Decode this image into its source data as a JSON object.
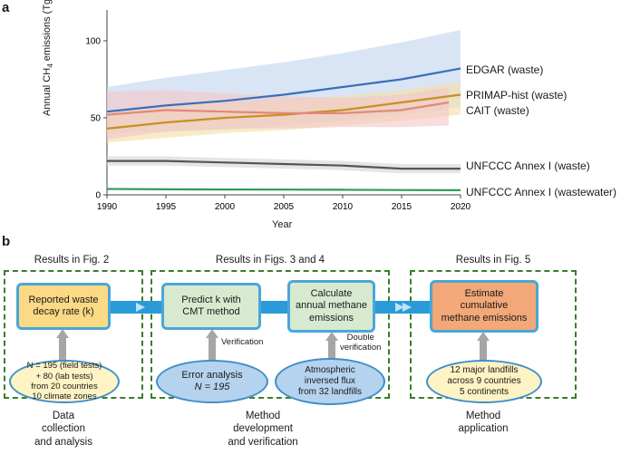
{
  "panel_a": {
    "letter": "a"
  },
  "panel_b": {
    "letter": "b",
    "headers": [
      "Results in Fig. 2",
      "Results in Figs. 3 and 4",
      "Results in Fig. 5"
    ],
    "boxes": {
      "decay": [
        "Reported waste",
        "decay rate (k)"
      ],
      "predict": [
        "Predict k with",
        "CMT method"
      ],
      "calculate": [
        "Calculate",
        "annual methane",
        "emissions"
      ],
      "estimate": [
        "Estimate",
        "cumulative",
        "methane emissions"
      ]
    },
    "ellipses": {
      "data": [
        "N = 195 (field tests)",
        "+ 80 (lab tests)",
        "from 20 countries",
        "10 climate zones"
      ],
      "error": [
        "Error analysis",
        "N = 195"
      ],
      "flux": [
        "Atmospheric",
        "inversed flux",
        "from 32 landfills"
      ],
      "landfills": [
        "12 major landfills",
        "across 9 countries",
        "5 continents"
      ]
    },
    "notes": {
      "verification": "Verification",
      "double": [
        "Double",
        "verification"
      ]
    },
    "captions": {
      "collection": [
        "Data",
        "collection",
        "and analysis"
      ],
      "development": [
        "Method",
        "development",
        "and verification"
      ],
      "application": [
        "Method",
        "application"
      ]
    },
    "colors": {
      "yellow_box": "#fbd985",
      "green_box": "#d7ead0",
      "orange_box": "#f2a878",
      "pipe": "#2a9bd8",
      "dash": "#3a7d2c"
    }
  },
  "chart_data": {
    "type": "line",
    "title": "",
    "xlabel": "Year",
    "ylabel_parts": [
      "Annual CH",
      "4",
      " emissions (Tg)"
    ],
    "x_ticks": [
      1990,
      1995,
      2000,
      2005,
      2010,
      2015,
      2020
    ],
    "y_ticks": [
      0,
      50,
      100
    ],
    "xlim": [
      1990,
      2020
    ],
    "ylim": [
      0,
      120
    ],
    "grid": false,
    "series": [
      {
        "name": "EDGAR (waste)",
        "color": "#3a6fb8",
        "band_color": "#bfd4ee",
        "x": [
          1990,
          1995,
          2000,
          2005,
          2010,
          2015,
          2020
        ],
        "values": [
          54,
          58,
          61,
          65,
          70,
          75,
          82
        ],
        "lower": [
          40,
          41,
          42,
          45,
          48,
          52,
          57
        ],
        "upper": [
          70,
          76,
          81,
          86,
          92,
          99,
          107
        ]
      },
      {
        "name": "PRIMAP-hist (waste)",
        "color": "#c98f22",
        "band_color": "#f3e0a3",
        "x": [
          1990,
          1995,
          2000,
          2005,
          2010,
          2015,
          2020
        ],
        "values": [
          43,
          47,
          50,
          52,
          55,
          60,
          65
        ],
        "lower": [
          34,
          37,
          40,
          42,
          45,
          48,
          52
        ],
        "upper": [
          53,
          57,
          60,
          62,
          64,
          68,
          73
        ]
      },
      {
        "name": "CAIT (waste)",
        "color": "#e08a78",
        "band_color": "#f4c6c6",
        "x": [
          1990,
          1995,
          2000,
          2005,
          2010,
          2015,
          2019
        ],
        "values": [
          52,
          55,
          54,
          53,
          53,
          55,
          60
        ],
        "lower": [
          36,
          41,
          43,
          43,
          44,
          44,
          45
        ],
        "upper": [
          67,
          68,
          66,
          64,
          63,
          65,
          70
        ]
      },
      {
        "name": "UNFCCC Annex I (waste)",
        "color": "#555555",
        "band_color": "#d3d3d3",
        "x": [
          1990,
          1995,
          2000,
          2005,
          2010,
          2015,
          2020
        ],
        "values": [
          22,
          22,
          21,
          20,
          19,
          17,
          17
        ],
        "lower": [
          19,
          19,
          18,
          17,
          16,
          14,
          14
        ],
        "upper": [
          25,
          25,
          24,
          23,
          22,
          20,
          20
        ]
      },
      {
        "name": "UNFCCC Annex I (wastewater)",
        "color": "#2e9a57",
        "band_color": "#cfe9d8",
        "x": [
          1990,
          1995,
          2000,
          2005,
          2010,
          2015,
          2020
        ],
        "values": [
          3.8,
          3.6,
          3.5,
          3.4,
          3.3,
          3.1,
          3.0
        ],
        "lower": [
          3.3,
          3.1,
          3.0,
          2.9,
          2.8,
          2.6,
          2.5
        ],
        "upper": [
          4.3,
          4.1,
          4.0,
          3.9,
          3.8,
          3.6,
          3.5
        ]
      }
    ]
  }
}
